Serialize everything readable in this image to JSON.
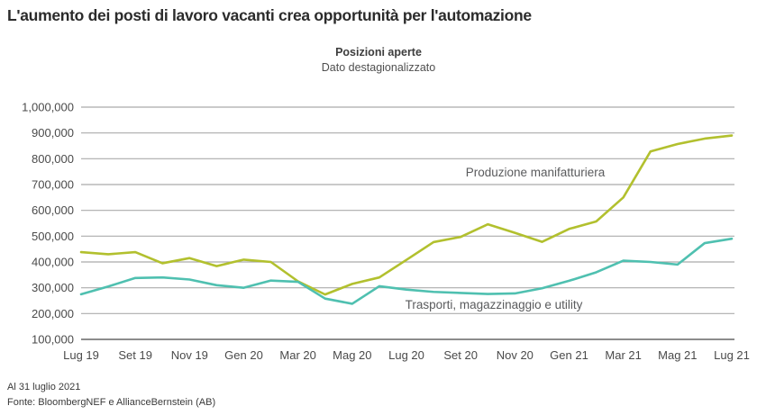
{
  "header": {
    "title": "L'aumento dei posti di lavoro vacanti crea opportunità per l'automazione"
  },
  "footer": {
    "as_of": "Al 31 luglio 2021",
    "source": "Fonte: BloombergNEF e AllianceBernstein (AB)"
  },
  "chart_data": {
    "type": "line",
    "title": "Posizioni aperte",
    "subtitle": "Dato destagionalizzato",
    "ylim": [
      100000,
      1000000
    ],
    "ytick_step": 100000,
    "grid": true,
    "legend_position": "inline-annotations",
    "months": [
      "Lug 19",
      "Ago 19",
      "Set 19",
      "Ott 19",
      "Nov 19",
      "Dic 19",
      "Gen 20",
      "Feb 20",
      "Mar 20",
      "Apr 20",
      "Mag 20",
      "Giu 20",
      "Lug 20",
      "Ago 20",
      "Set 20",
      "Ott 20",
      "Nov 20",
      "Dic 20",
      "Gen 21",
      "Feb 21",
      "Mar 21",
      "Apr 21",
      "Mag 21",
      "Giu 21",
      "Lug 21"
    ],
    "x_tick_labels": [
      "Lug 19",
      "Set 19",
      "Nov 19",
      "Gen 20",
      "Mar 20",
      "Mag 20",
      "Lug 20",
      "Set 20",
      "Nov 20",
      "Gen 21",
      "Mar 21",
      "Mag 21",
      "Lug 21"
    ],
    "series": [
      {
        "name": "Produzione manifatturiera",
        "color": "#b2c02e",
        "values": [
          438000,
          430000,
          438000,
          395000,
          415000,
          384000,
          409000,
          400000,
          325000,
          274000,
          315000,
          340000,
          408000,
          477000,
          497000,
          546000,
          513000,
          478000,
          528000,
          557000,
          650000,
          828000,
          857000,
          878000,
          890000
        ]
      },
      {
        "name": "Trasporti, magazzinaggio e utility",
        "color": "#4fc0b0",
        "values": [
          275000,
          305000,
          338000,
          340000,
          332000,
          310000,
          300000,
          328000,
          323000,
          258000,
          238000,
          306000,
          293000,
          284000,
          280000,
          276000,
          278000,
          298000,
          327000,
          360000,
          405000,
          400000,
          390000,
          473000,
          490000
        ]
      }
    ],
    "colors": {
      "gridline": "#ababab",
      "baseline": "#8c8c8c",
      "tick_text": "#4a4a4a",
      "annotation_text": "#5a5b5d"
    }
  }
}
